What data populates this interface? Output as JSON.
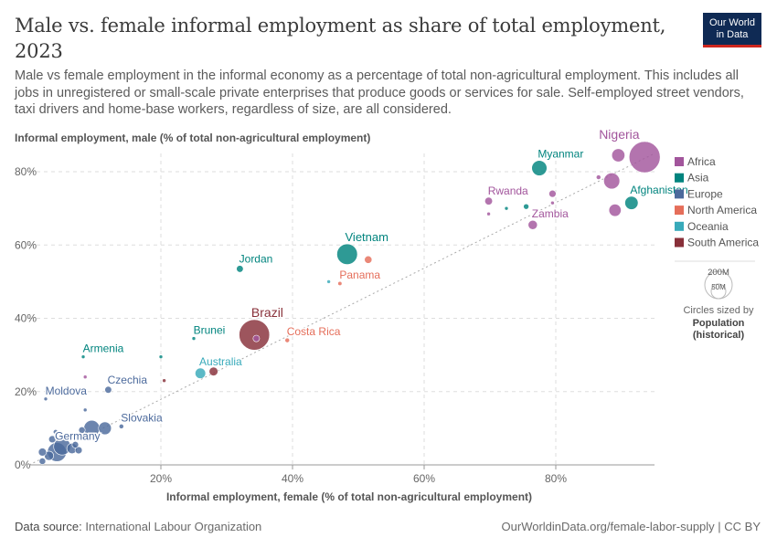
{
  "header": {
    "title": "Male vs. female informal employment as share of total employment, 2023",
    "subtitle": "Male vs female employment in the informal economy as a percentage of total non-agricultural employment. This includes all jobs in unregistered or small-scale private enterprises that produce goods or services for sale. Self-employed street vendors, taxi drivers and home-base workers, regardless of size, are all considered."
  },
  "logo": {
    "line1": "Our World",
    "line2": "in Data"
  },
  "footer": {
    "source_label": "Data source:",
    "source": "International Labour Organization",
    "url": "OurWorldinData.org/female-labor-supply | CC BY"
  },
  "size_legend": {
    "title_line1": "Circles sized by",
    "title_line2": "Population",
    "title_line3": "(historical)",
    "large_label": "200M",
    "small_label": "50M"
  },
  "colors": {
    "Africa": "#a2559c",
    "Asia": "#00847e",
    "Europe": "#4c6a9c",
    "North America": "#e56e5a",
    "Oceania": "#38aaba",
    "South America": "#883039"
  },
  "chart_data": {
    "type": "scatter",
    "title": "Male vs. female informal employment as share of total employment, 2023",
    "xlabel": "Informal employment, female (% of total non-agricultural employment)",
    "ylabel": "Informal employment, male (% of total non-agricultural employment)",
    "xlim": [
      0,
      95
    ],
    "ylim": [
      0,
      85
    ],
    "x_ticks": [
      20,
      40,
      60,
      80
    ],
    "x_tick_labels": [
      "20%",
      "40%",
      "60%",
      "80%"
    ],
    "y_ticks": [
      0,
      20,
      40,
      60,
      80
    ],
    "y_tick_labels": [
      "0%",
      "20%",
      "40%",
      "60%",
      "80%"
    ],
    "grid": true,
    "legend": [
      "Africa",
      "Asia",
      "Europe",
      "North America",
      "Oceania",
      "South America"
    ],
    "legend_position": "right",
    "points": [
      {
        "label": "Nigeria",
        "region": "Africa",
        "x": 93.5,
        "y": 84,
        "pop": 225
      },
      {
        "label": "",
        "region": "Africa",
        "x": 89.5,
        "y": 84.5,
        "pop": 40
      },
      {
        "label": "",
        "region": "Africa",
        "x": 88.5,
        "y": 77.5,
        "pop": 60
      },
      {
        "label": "",
        "region": "Africa",
        "x": 86.5,
        "y": 78.5,
        "pop": 5
      },
      {
        "label": "",
        "region": "Africa",
        "x": 89,
        "y": 69.5,
        "pop": 35
      },
      {
        "label": "",
        "region": "Africa",
        "x": 79.5,
        "y": 74,
        "pop": 12
      },
      {
        "label": "",
        "region": "Africa",
        "x": 79.5,
        "y": 71.5,
        "pop": 2
      },
      {
        "label": "Rwanda",
        "region": "Africa",
        "x": 69.8,
        "y": 72,
        "pop": 14
      },
      {
        "label": "",
        "region": "Africa",
        "x": 69.8,
        "y": 68.5,
        "pop": 2
      },
      {
        "label": "Zambia",
        "region": "Africa",
        "x": 76.5,
        "y": 65.5,
        "pop": 20
      },
      {
        "label": "",
        "region": "Africa",
        "x": 8.5,
        "y": 24,
        "pop": 2
      },
      {
        "label": "",
        "region": "Africa",
        "x": 34.5,
        "y": 34.5,
        "pop": 10
      },
      {
        "label": "Myanmar",
        "region": "Asia",
        "x": 77.5,
        "y": 81,
        "pop": 54
      },
      {
        "label": "Afghanistan",
        "region": "Asia",
        "x": 91.5,
        "y": 71.5,
        "pop": 41
      },
      {
        "label": "",
        "region": "Asia",
        "x": 75.5,
        "y": 70.5,
        "pop": 7
      },
      {
        "label": "",
        "region": "Asia",
        "x": 72.5,
        "y": 70,
        "pop": 2
      },
      {
        "label": "Vietnam",
        "region": "Asia",
        "x": 48.3,
        "y": 57.5,
        "pop": 99
      },
      {
        "label": "Jordan",
        "region": "Asia",
        "x": 32,
        "y": 53.5,
        "pop": 11
      },
      {
        "label": "Brunei",
        "region": "Asia",
        "x": 25,
        "y": 34.5,
        "pop": 1
      },
      {
        "label": "Armenia",
        "region": "Asia",
        "x": 8.2,
        "y": 29.5,
        "pop": 3
      },
      {
        "label": "",
        "region": "Asia",
        "x": 20,
        "y": 29.5,
        "pop": 3
      },
      {
        "label": "Germany",
        "region": "Europe",
        "x": 4.2,
        "y": 3.5,
        "pop": 84
      },
      {
        "label": "",
        "region": "Europe",
        "x": 5,
        "y": 5,
        "pop": 67
      },
      {
        "label": "",
        "region": "Europe",
        "x": 6.5,
        "y": 4.5,
        "pop": 25
      },
      {
        "label": "",
        "region": "Europe",
        "x": 3,
        "y": 2.5,
        "pop": 20
      },
      {
        "label": "",
        "region": "Europe",
        "x": 2,
        "y": 3.5,
        "pop": 15
      },
      {
        "label": "",
        "region": "Europe",
        "x": 2,
        "y": 1,
        "pop": 10
      },
      {
        "label": "",
        "region": "Europe",
        "x": 3.5,
        "y": 7,
        "pop": 12
      },
      {
        "label": "",
        "region": "Europe",
        "x": 7,
        "y": 5.5,
        "pop": 10
      },
      {
        "label": "",
        "region": "Europe",
        "x": 7.5,
        "y": 4,
        "pop": 12
      },
      {
        "label": "",
        "region": "Europe",
        "x": 9.5,
        "y": 10,
        "pop": 59
      },
      {
        "label": "",
        "region": "Europe",
        "x": 11.5,
        "y": 10,
        "pop": 38
      },
      {
        "label": "",
        "region": "Europe",
        "x": 8,
        "y": 9.5,
        "pop": 10
      },
      {
        "label": "",
        "region": "Europe",
        "x": 4,
        "y": 9,
        "pop": 5
      },
      {
        "label": "",
        "region": "Europe",
        "x": 8.5,
        "y": 15,
        "pop": 2
      },
      {
        "label": "Slovakia",
        "region": "Europe",
        "x": 14,
        "y": 10.5,
        "pop": 5
      },
      {
        "label": "Czechia",
        "region": "Europe",
        "x": 12,
        "y": 20.5,
        "pop": 11
      },
      {
        "label": "Moldova",
        "region": "Europe",
        "x": 2.5,
        "y": 18,
        "pop": 3
      },
      {
        "label": "Costa Rica",
        "region": "North America",
        "x": 39.2,
        "y": 34,
        "pop": 5
      },
      {
        "label": "Panama",
        "region": "North America",
        "x": 47.2,
        "y": 49.5,
        "pop": 4
      },
      {
        "label": "",
        "region": "North America",
        "x": 51.5,
        "y": 56,
        "pop": 13
      },
      {
        "label": "Australia",
        "region": "Oceania",
        "x": 26,
        "y": 25,
        "pop": 26
      },
      {
        "label": "",
        "region": "Oceania",
        "x": 45.5,
        "y": 50,
        "pop": 1
      },
      {
        "label": "Brazil",
        "region": "South America",
        "x": 34.2,
        "y": 35.5,
        "pop": 216
      },
      {
        "label": "",
        "region": "South America",
        "x": 28,
        "y": 25.5,
        "pop": 18
      },
      {
        "label": "",
        "region": "South America",
        "x": 20.5,
        "y": 23,
        "pop": 3
      }
    ]
  }
}
